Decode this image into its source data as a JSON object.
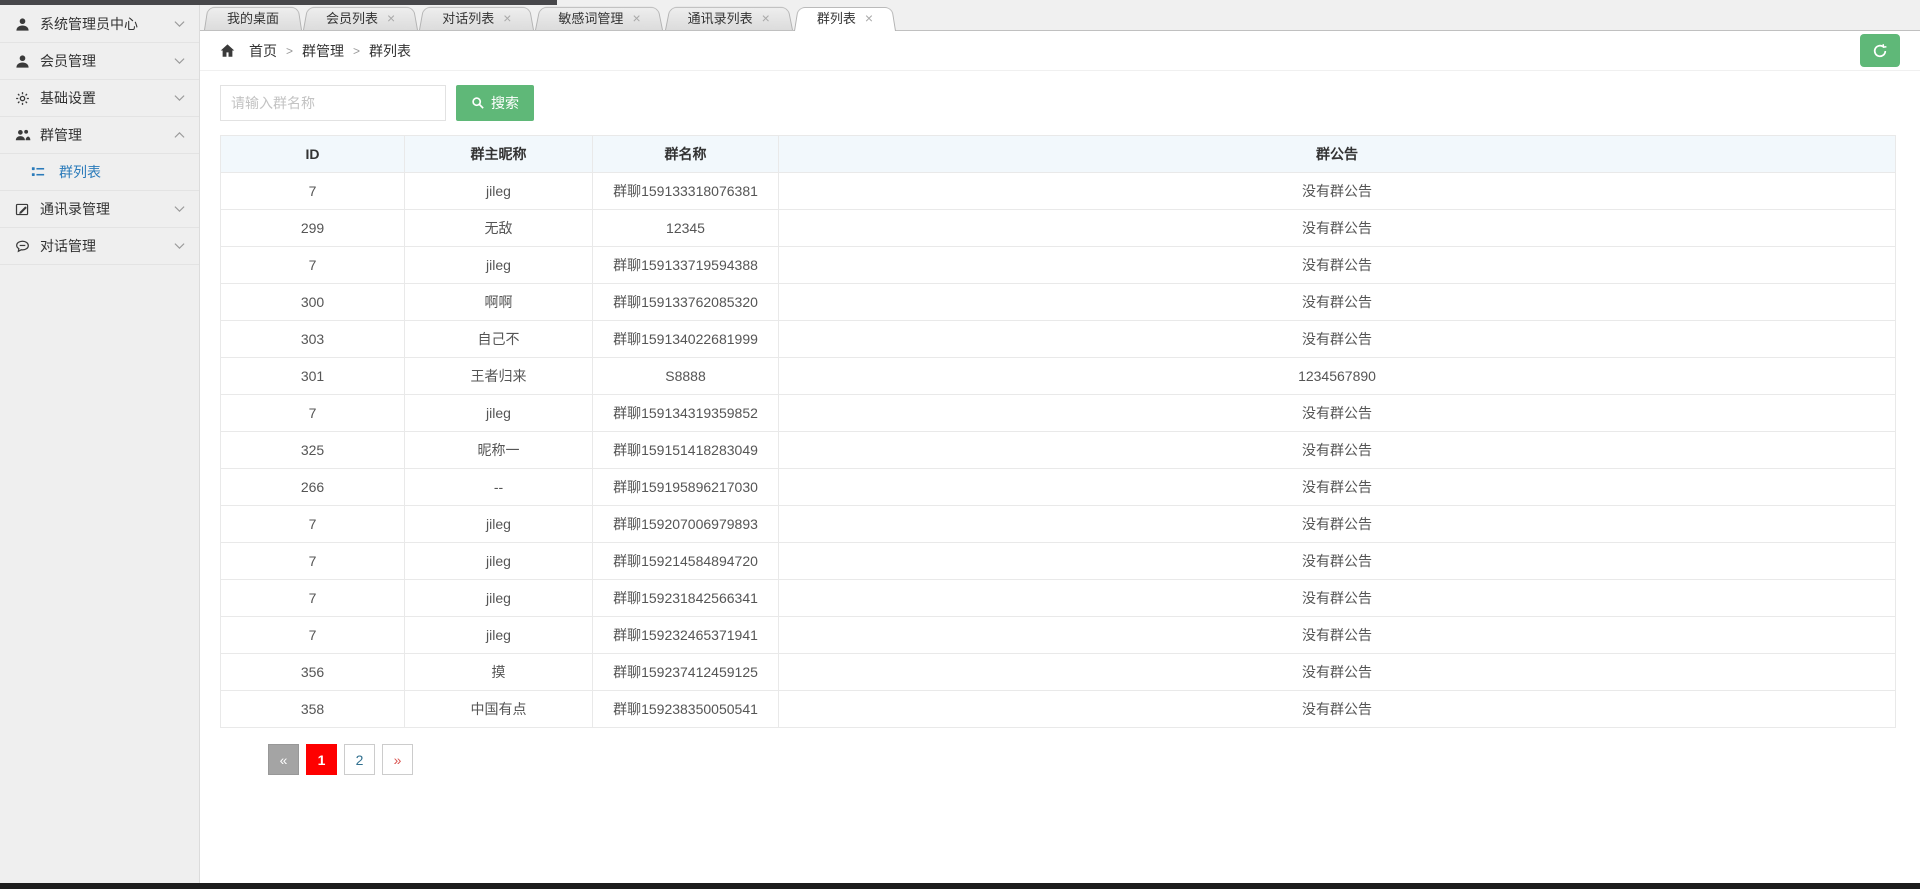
{
  "sidebar": {
    "items": [
      {
        "key": "system-admin-center",
        "label": "系统管理员中心",
        "icon": "person-icon",
        "expanded": false
      },
      {
        "key": "member-management",
        "label": "会员管理",
        "icon": "person-icon",
        "expanded": false
      },
      {
        "key": "basic-settings",
        "label": "基础设置",
        "icon": "gear-icon",
        "expanded": false
      },
      {
        "key": "group-management",
        "label": "群管理",
        "icon": "users-icon",
        "expanded": true,
        "children": [
          {
            "key": "group-list",
            "label": "群列表",
            "icon": "list-icon",
            "active": true
          }
        ]
      },
      {
        "key": "contacts-management",
        "label": "通讯录管理",
        "icon": "edit-icon",
        "expanded": false
      },
      {
        "key": "dialog-management",
        "label": "对话管理",
        "icon": "chat-icon",
        "expanded": false
      }
    ]
  },
  "tabs": [
    {
      "key": "my-desktop",
      "label": "我的桌面",
      "closable": false,
      "active": false
    },
    {
      "key": "member-list",
      "label": "会员列表",
      "closable": true,
      "active": false
    },
    {
      "key": "dialog-list",
      "label": "对话列表",
      "closable": true,
      "active": false
    },
    {
      "key": "sensitive-words",
      "label": "敏感词管理",
      "closable": true,
      "active": false
    },
    {
      "key": "contacts-list",
      "label": "通讯录列表",
      "closable": true,
      "active": false
    },
    {
      "key": "group-list",
      "label": "群列表",
      "closable": true,
      "active": true
    }
  ],
  "breadcrumb": {
    "items": [
      {
        "label": "首页"
      },
      {
        "label": "群管理"
      },
      {
        "label": "群列表"
      }
    ],
    "separator": ">"
  },
  "toolbar": {
    "search_placeholder": "请输入群名称",
    "search_label": "搜索"
  },
  "table": {
    "columns": [
      {
        "key": "id",
        "label": "ID"
      },
      {
        "key": "owner",
        "label": "群主昵称"
      },
      {
        "key": "name",
        "label": "群名称"
      },
      {
        "key": "announcement",
        "label": "群公告"
      }
    ],
    "rows": [
      {
        "id": "7",
        "owner": "jileg",
        "name": "群聊159133318076381",
        "announcement": "没有群公告"
      },
      {
        "id": "299",
        "owner": "无敌",
        "name": "12345",
        "announcement": "没有群公告"
      },
      {
        "id": "7",
        "owner": "jileg",
        "name": "群聊159133719594388",
        "announcement": "没有群公告"
      },
      {
        "id": "300",
        "owner": "啊啊",
        "name": "群聊159133762085320",
        "announcement": "没有群公告"
      },
      {
        "id": "303",
        "owner": "自己不",
        "name": "群聊159134022681999",
        "announcement": "没有群公告"
      },
      {
        "id": "301",
        "owner": "王者归来",
        "name": "S8888",
        "announcement": "1234567890"
      },
      {
        "id": "7",
        "owner": "jileg",
        "name": "群聊159134319359852",
        "announcement": "没有群公告"
      },
      {
        "id": "325",
        "owner": "昵称一",
        "name": "群聊159151418283049",
        "announcement": "没有群公告"
      },
      {
        "id": "266",
        "owner": "--",
        "name": "群聊159195896217030",
        "announcement": "没有群公告"
      },
      {
        "id": "7",
        "owner": "jileg",
        "name": "群聊159207006979893",
        "announcement": "没有群公告"
      },
      {
        "id": "7",
        "owner": "jileg",
        "name": "群聊159214584894720",
        "announcement": "没有群公告"
      },
      {
        "id": "7",
        "owner": "jileg",
        "name": "群聊159231842566341",
        "announcement": "没有群公告"
      },
      {
        "id": "7",
        "owner": "jileg",
        "name": "群聊159232465371941",
        "announcement": "没有群公告"
      },
      {
        "id": "356",
        "owner": "摸",
        "name": "群聊159237412459125",
        "announcement": "没有群公告"
      },
      {
        "id": "358",
        "owner": "中国有点",
        "name": "群聊159238350050541",
        "announcement": "没有群公告"
      }
    ]
  },
  "pagination": {
    "prev_label": "«",
    "next_label": "»",
    "pages": [
      {
        "label": "1",
        "active": true
      },
      {
        "label": "2",
        "active": false
      }
    ]
  },
  "icons": {
    "close": "×"
  },
  "colors": {
    "accent_green": "#5FB878",
    "active_page_red": "#FE0000",
    "sidebar_link_blue": "#2B7BBA"
  }
}
